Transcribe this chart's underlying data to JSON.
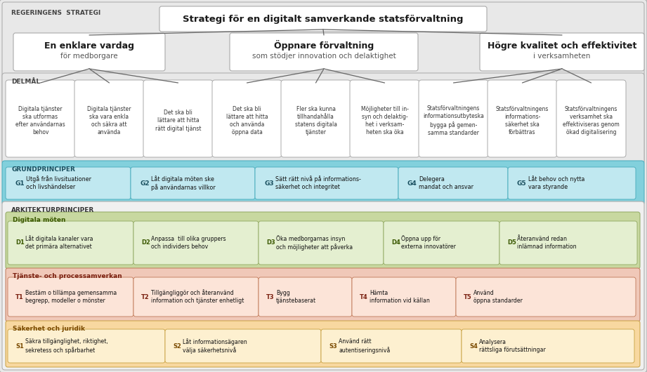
{
  "fig_width": 9.21,
  "fig_height": 5.3,
  "title_strategi": "Strategi för en digitalt samverkande statsförvaltning",
  "box1_line1": "En enklare vardag",
  "box1_line2": "för medborgare",
  "box2_line1": "Öppnare förvaltning",
  "box2_line2": "som stödjer innovation och delaktighet",
  "box3_line1": "Högre kvalitet och effektivitet",
  "box3_line2": "i verksamheten",
  "delmaal_boxes": [
    "Digitala tjänster\nska utformas\nefter användarnas\nbehov",
    "Digitala tjänster\nska vara enkla\noch säkra att\nanvända",
    "Det ska bli\nlättare att hitta\nrätt digital tjänst",
    "Det ska bli\nlättare att hitta\noch använda\nöppna data",
    "Fler ska kunna\ntillhandahålla\nstatens digitala\ntjänster",
    "Möjligheter till in-\nsyn och delaktig-\nhet i verksam-\nheten ska öka",
    "Statsförvaltningens\ninformationsutbyteska\nbygga på gemen-\nsamma standarder",
    "Statsförvaltningens\ninformations-\nsäkerhet ska\nförbättras",
    "Statsförvaltningens\nverksamhet ska\neffektiviseras genom\nökad digitalisering"
  ],
  "grundprinciper_boxes": [
    [
      "G1",
      "Utgå från livsituationer\noch livshändelser"
    ],
    [
      "G2",
      "Låt digitala möten ske\npå användarnas villkor"
    ],
    [
      "G3",
      "Sätt rätt nivå på informations-\nsäkerhet och integritet"
    ],
    [
      "G4",
      "Delegera\nmandat och ansvar"
    ],
    [
      "G5",
      "Låt behov och nytta\nvara styrande"
    ]
  ],
  "digitala_moten_boxes": [
    [
      "D1",
      "Låt digitala kanaler vara\ndet primära alternativet"
    ],
    [
      "D2",
      "Anpassa  till olika gruppers\noch individers behov"
    ],
    [
      "D3",
      "Öka medborgarnas insyn\noch möjligheter att påverka"
    ],
    [
      "D4",
      "Öppna upp för\nexterna innovatörer"
    ],
    [
      "D5",
      "Återanvänd redan\ninlämnad information"
    ]
  ],
  "tjanste_boxes": [
    [
      "T1",
      "Bestäm o tillämpa gemensamma\nbegrepp, modeller o mönster"
    ],
    [
      "T2",
      "Tillgängliggör och återanvänd\ninformation och tjänster enhetligt"
    ],
    [
      "T3",
      "Bygg\ntjänstebaserat"
    ],
    [
      "T4",
      "Hämta\ninformation vid källan"
    ],
    [
      "T5",
      "Använd\nöppna standarder"
    ]
  ],
  "sakerhet_boxes": [
    [
      "S1",
      "Säkra tillgänglighet, riktighet,\nsekretess och spårbarhet"
    ],
    [
      "S2",
      "Låt informationsägaren\nvälja säkerhetsnivå"
    ],
    [
      "S3",
      "Använd rätt\nautentiseringsnivå"
    ],
    [
      "S4",
      "Analysera\nrättsliga förutsättningar"
    ]
  ],
  "col_outer_bg": "#e8e8e8",
  "col_outer_border": "#b0b0b0",
  "col_white": "#ffffff",
  "col_white_border": "#aaaaaa",
  "col_teal_bg": "#82d0dc",
  "col_teal_border": "#50b0c0",
  "col_teal_box": "#c0e8f0",
  "col_arkitektur_bg": "#f0f0f0",
  "col_arkitektur_border": "#b0b0b0",
  "col_green_bg": "#c8d8a0",
  "col_green_border": "#90a860",
  "col_green_box": "#e4efd0",
  "col_red_bg": "#f0c8b8",
  "col_red_border": "#c07858",
  "col_red_box": "#fce4d8",
  "col_orange_bg": "#f8d8a0",
  "col_orange_border": "#c8a040",
  "col_orange_box": "#fdf0d0"
}
